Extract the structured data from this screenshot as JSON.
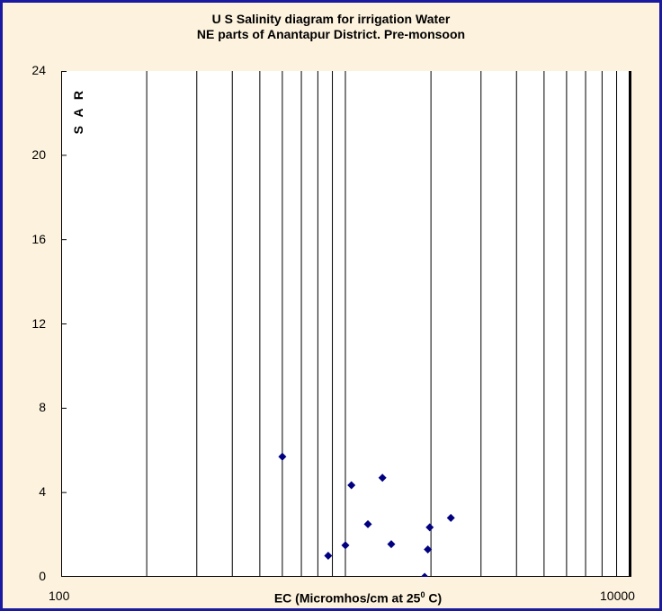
{
  "chart_data": {
    "type": "scatter",
    "title_line1": "U S Salinity diagram for irrigation Water",
    "title_line2": "NE parts of Anantapur District. Pre-monsoon",
    "xlabel_prefix": "EC (Micromhos/cm at 25",
    "xlabel_sup": "0",
    "xlabel_suffix": " C)",
    "ylabel": "S A R",
    "x_scale": "log",
    "xlim": [
      100,
      10000
    ],
    "ylim": [
      0,
      24
    ],
    "x_ticks": [
      "100",
      "10000"
    ],
    "y_ticks": [
      "0",
      "4",
      "8",
      "12",
      "16",
      "20",
      "24"
    ],
    "vertical_gridlines_at": [
      200,
      300,
      400,
      500,
      600,
      700,
      800,
      900,
      1000,
      2000,
      3000,
      4000,
      5000,
      6000,
      7000,
      8000,
      9000,
      10000
    ],
    "marker_color": "#000080",
    "points": [
      {
        "x": 600,
        "y": 5.7
      },
      {
        "x": 870,
        "y": 1.0
      },
      {
        "x": 1000,
        "y": 1.5
      },
      {
        "x": 1050,
        "y": 4.35
      },
      {
        "x": 1200,
        "y": 2.5
      },
      {
        "x": 1350,
        "y": 4.7
      },
      {
        "x": 1450,
        "y": 1.55
      },
      {
        "x": 1900,
        "y": 0.0
      },
      {
        "x": 1950,
        "y": 1.3
      },
      {
        "x": 1980,
        "y": 2.35
      },
      {
        "x": 2350,
        "y": 2.8
      }
    ]
  }
}
